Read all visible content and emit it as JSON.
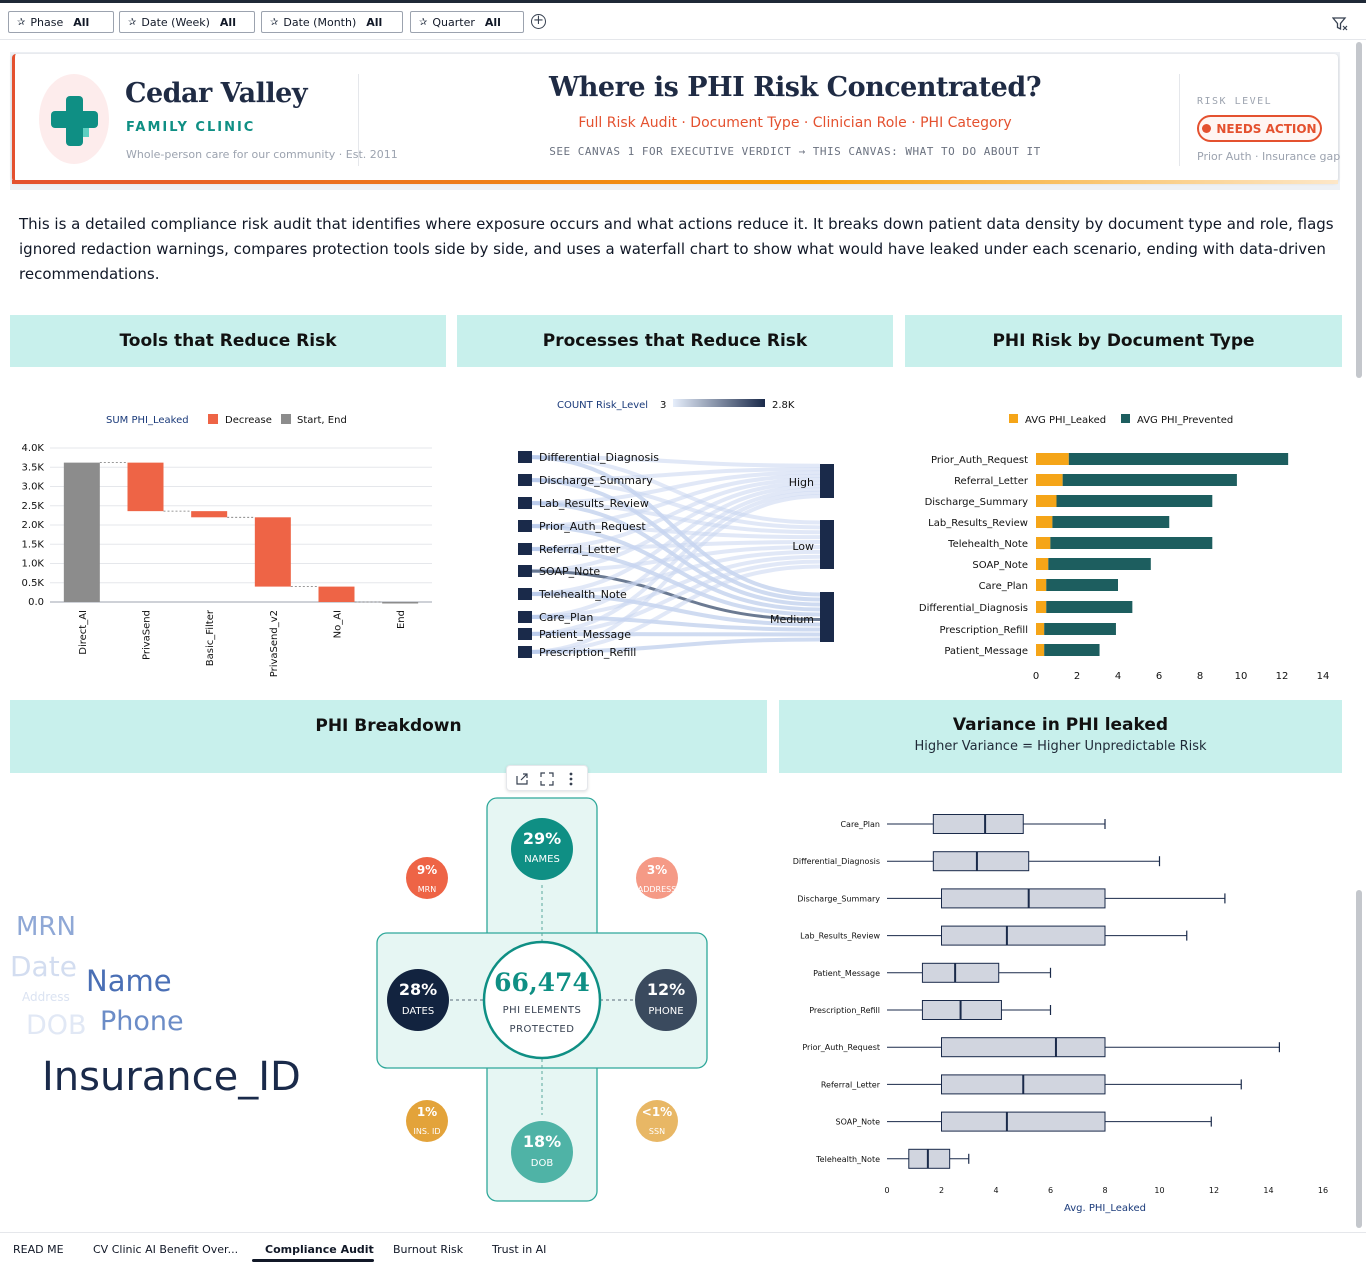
{
  "filters": [
    {
      "label": "Phase",
      "value": "All"
    },
    {
      "label": "Date (Week)",
      "value": "All"
    },
    {
      "label": "Date (Month)",
      "value": "All"
    },
    {
      "label": "Quarter",
      "value": "All"
    }
  ],
  "header": {
    "brand_name": "Cedar Valley",
    "brand_sub": "FAMILY CLINIC",
    "brand_tagline": "Whole-person care for our community · Est. 2011",
    "title": "Where is PHI Risk Concentrated?",
    "subtitle": "Full Risk Audit · Document Type · Clinician Role · PHI Category",
    "note": "SEE CANVAS 1 FOR EXECUTIVE VERDICT → THIS CANVAS: WHAT TO DO ABOUT IT",
    "risk_label": "RISK LEVEL",
    "risk_value": "NEEDS ACTION",
    "risk_detail": "Prior Auth · Insurance gap actions"
  },
  "intro": "This is a detailed compliance risk audit that identifies where exposure occurs and what actions reduce it. It breaks down patient data density by document type and role, flags ignored redaction warnings, compares protection tools side by side, and uses a waterfall chart to show what would have leaked under each scenario, ending with data-driven recommendations.",
  "sections": {
    "tools": "Tools that Reduce Risk",
    "processes": "Processes that Reduce Risk",
    "doctype": "PHI Risk by Document Type",
    "breakdown": "PHI Breakdown",
    "variance": "Variance in PHI leaked",
    "variance_sub": "Higher Variance = Higher Unpredictable Risk"
  },
  "colors": {
    "decrease": "#ee6446",
    "startend": "#8c8c8c",
    "leaked": "#f5a518",
    "prevented": "#1d5e5f",
    "navy": "#1a2a4a",
    "teal": "#0f8f84"
  },
  "chart_data": [
    {
      "type": "waterfall",
      "title": "Tools that Reduce Risk",
      "legend": [
        "SUM PHI_Leaked",
        "Decrease",
        "Start, End"
      ],
      "categories": [
        "Direct_AI",
        "PrivaSend",
        "Basic_Filter",
        "PrivaSend_v2",
        "No_AI",
        "End"
      ],
      "steps": [
        {
          "name": "Direct_AI",
          "kind": "start",
          "from": 0,
          "to": 3620
        },
        {
          "name": "PrivaSend",
          "kind": "decrease",
          "from": 3620,
          "to": 2360
        },
        {
          "name": "Basic_Filter",
          "kind": "decrease",
          "from": 2360,
          "to": 2200
        },
        {
          "name": "PrivaSend_v2",
          "kind": "decrease",
          "from": 2200,
          "to": 400
        },
        {
          "name": "No_AI",
          "kind": "decrease",
          "from": 400,
          "to": 0
        },
        {
          "name": "End",
          "kind": "end",
          "from": 0,
          "to": 0
        }
      ],
      "y_ticks": [
        "0.0",
        "0.5K",
        "1.0K",
        "1.5K",
        "2.0K",
        "2.5K",
        "3.0K",
        "3.5K",
        "4.0K"
      ],
      "ylim": [
        0,
        4000
      ]
    },
    {
      "type": "sankey",
      "title": "Processes that Reduce Risk",
      "color_legend": {
        "label": "COUNT Risk_Level",
        "min": "3",
        "max": "2.8K"
      },
      "sources": [
        "Differential_Diagnosis",
        "Discharge_Summary",
        "Lab_Results_Review",
        "Prior_Auth_Request",
        "Referral_Letter",
        "SOAP_Note",
        "Telehealth_Note",
        "Care_Plan",
        "Patient_Message",
        "Prescription_Refill"
      ],
      "targets": [
        "High",
        "Low",
        "Medium"
      ]
    },
    {
      "type": "bar",
      "orientation": "horizontal",
      "stacked": true,
      "title": "PHI Risk by Document Type",
      "categories": [
        "Prior_Auth_Request",
        "Referral_Letter",
        "Discharge_Summary",
        "Lab_Results_Review",
        "Telehealth_Note",
        "SOAP_Note",
        "Care_Plan",
        "Differential_Diagnosis",
        "Prescription_Refill",
        "Patient_Message"
      ],
      "series": [
        {
          "name": "AVG PHI_Leaked",
          "values": [
            1.6,
            1.3,
            1.0,
            0.8,
            0.7,
            0.6,
            0.5,
            0.5,
            0.4,
            0.4
          ]
        },
        {
          "name": "AVG PHI_Prevented",
          "values": [
            10.7,
            8.5,
            7.6,
            5.7,
            7.9,
            5.0,
            3.5,
            4.2,
            3.5,
            2.7
          ]
        }
      ],
      "x_ticks": [
        "0",
        "2",
        "4",
        "6",
        "8",
        "10",
        "12",
        "14"
      ],
      "xlim": [
        0,
        14
      ]
    },
    {
      "type": "boxplot",
      "title": "Variance in PHI leaked",
      "xlabel": "Avg. PHI_Leaked",
      "categories": [
        "Care_Plan",
        "Differential_Diagnosis",
        "Discharge_Summary",
        "Lab_Results_Review",
        "Patient_Message",
        "Prescription_Refill",
        "Prior_Auth_Request",
        "Referral_Letter",
        "SOAP_Note",
        "Telehealth_Note"
      ],
      "boxes": [
        {
          "min": 0,
          "q1": 1.7,
          "median": 3.6,
          "q3": 5.0,
          "max": 8.0
        },
        {
          "min": 0,
          "q1": 1.7,
          "median": 3.3,
          "q3": 5.2,
          "max": 10.0
        },
        {
          "min": 0,
          "q1": 2.0,
          "median": 5.2,
          "q3": 8.0,
          "max": 12.4
        },
        {
          "min": 0,
          "q1": 2.0,
          "median": 4.4,
          "q3": 8.0,
          "max": 11.0
        },
        {
          "min": 0,
          "q1": 1.3,
          "median": 2.5,
          "q3": 4.1,
          "max": 6.0
        },
        {
          "min": 0,
          "q1": 1.3,
          "median": 2.7,
          "q3": 4.2,
          "max": 6.0
        },
        {
          "min": 0,
          "q1": 2.0,
          "median": 6.2,
          "q3": 8.0,
          "max": 14.4
        },
        {
          "min": 0,
          "q1": 2.0,
          "median": 5.0,
          "q3": 8.0,
          "max": 13.0
        },
        {
          "min": 0,
          "q1": 2.0,
          "median": 4.4,
          "q3": 8.0,
          "max": 11.9
        },
        {
          "min": 0,
          "q1": 0.8,
          "median": 1.5,
          "q3": 2.3,
          "max": 3.0
        }
      ],
      "x_ticks": [
        "0",
        "2",
        "4",
        "6",
        "8",
        "10",
        "12",
        "14",
        "16"
      ],
      "xlim": [
        0,
        16
      ]
    }
  ],
  "breakdown": {
    "total": "66,474",
    "total_label_1": "PHI ELEMENTS",
    "total_label_2": "PROTECTED",
    "bubbles": [
      {
        "pct": "29%",
        "label": "NAMES"
      },
      {
        "pct": "28%",
        "label": "DATES"
      },
      {
        "pct": "12%",
        "label": "PHONE"
      },
      {
        "pct": "18%",
        "label": "DOB"
      },
      {
        "pct": "9%",
        "label": "MRN"
      },
      {
        "pct": "3%",
        "label": "ADDRESS"
      },
      {
        "pct": "1%",
        "label": "INS. ID"
      },
      {
        "pct": "<1%",
        "label": "SSN"
      }
    ],
    "wordcloud": [
      "MRN",
      "Date",
      "Name",
      "Address",
      "DOB",
      "Phone",
      "Insurance_ID"
    ]
  },
  "tabs": [
    "READ ME",
    "CV Clinic AI Benefit Over...",
    "Compliance Audit",
    "Burnout Risk",
    "Trust in AI"
  ]
}
